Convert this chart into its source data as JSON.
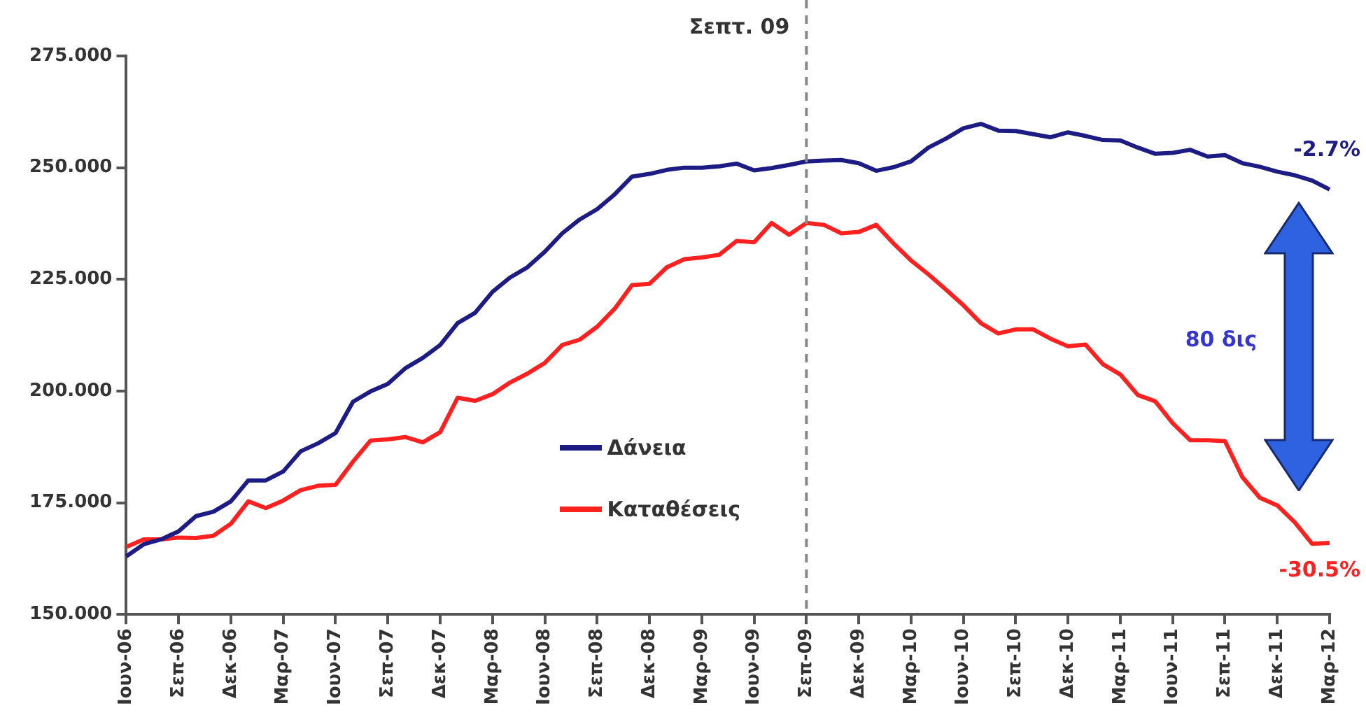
{
  "chart_data": {
    "type": "line",
    "categories": [
      "Ιουν-06",
      null,
      null,
      "Σεπ-06",
      null,
      null,
      "Δεκ-06",
      null,
      null,
      "Μαρ-07",
      null,
      null,
      "Ιουν-07",
      null,
      null,
      "Σεπ-07",
      null,
      null,
      "Δεκ-07",
      null,
      null,
      "Μαρ-08",
      null,
      null,
      "Ιουν-08",
      null,
      null,
      "Σεπ-08",
      null,
      null,
      "Δεκ-08",
      null,
      null,
      "Μαρ-09",
      null,
      null,
      "Ιουν-09",
      null,
      null,
      "Σεπ-09",
      null,
      null,
      "Δεκ-09",
      null,
      null,
      "Μαρ-10",
      null,
      null,
      "Ιουν-10",
      null,
      null,
      "Σεπ-10",
      null,
      null,
      "Δεκ-10",
      null,
      null,
      "Μαρ-11",
      null,
      null,
      "Ιουν-11",
      null,
      null,
      "Σεπ-11",
      null,
      null,
      "Δεκ-11",
      null,
      null,
      "Μαρ-12"
    ],
    "series": [
      {
        "name": "Δάνεια",
        "color": "#1c1c84",
        "values": [
          163.0,
          165.7,
          166.8,
          168.6,
          172.0,
          173.0,
          175.3,
          180.0,
          180.0,
          182.0,
          186.5,
          188.3,
          190.6,
          197.6,
          199.9,
          201.6,
          205.1,
          207.4,
          210.3,
          215.2,
          217.5,
          222.2,
          225.4,
          227.7,
          231.2,
          235.3,
          238.4,
          240.7,
          244.0,
          248.0,
          248.6,
          249.5,
          250.0,
          250.0,
          250.3,
          250.9,
          249.4,
          249.9,
          250.6,
          251.4,
          251.6,
          251.7,
          251.0,
          249.3,
          250.1,
          251.4,
          254.5,
          256.5,
          258.8,
          259.8,
          258.3,
          258.2,
          257.5,
          256.8,
          257.9,
          257.1,
          256.2,
          256.1,
          254.5,
          253.1,
          253.3,
          254.0,
          252.5,
          252.8,
          251.0,
          250.2,
          249.1,
          248.3,
          247.1,
          245.1
        ]
      },
      {
        "name": "Καταθέσεις",
        "color": "#ff2020",
        "values": [
          165.1,
          166.8,
          166.8,
          167.2,
          167.1,
          167.6,
          170.3,
          175.3,
          173.8,
          175.5,
          177.8,
          178.8,
          179.0,
          184.2,
          188.9,
          189.2,
          189.7,
          188.5,
          190.8,
          198.5,
          197.8,
          199.3,
          201.9,
          203.9,
          206.3,
          210.3,
          211.5,
          214.4,
          218.4,
          223.7,
          224.0,
          227.7,
          229.5,
          229.9,
          230.5,
          233.6,
          233.3,
          237.6,
          235.0,
          237.6,
          237.2,
          235.3,
          235.6,
          237.2,
          233.0,
          229.2,
          226.1,
          222.7,
          219.2,
          215.2,
          212.9,
          213.8,
          213.8,
          211.7,
          210.0,
          210.4,
          206.0,
          203.7,
          199.1,
          197.7,
          192.8,
          189.0,
          189.0,
          188.8,
          180.7,
          176.1,
          174.4,
          170.6,
          165.8,
          166.0
        ]
      }
    ],
    "ylim": [
      150,
      275
    ],
    "yticks": [
      {
        "value": 150,
        "label": "150.000"
      },
      {
        "value": 175,
        "label": "175.000"
      },
      {
        "value": 200,
        "label": "200.000"
      },
      {
        "value": 225,
        "label": "225.000"
      },
      {
        "value": 250,
        "label": "250.000"
      },
      {
        "value": 275,
        "label": "275.000"
      }
    ],
    "ref_lines": [
      {
        "axis": "x",
        "value": "Σεπ-09",
        "label": "Σεπτ. 09",
        "color": "#888888",
        "line_style": "dashed"
      }
    ],
    "annotations": [
      {
        "text": "-2.7%",
        "x": "Μαρ-12",
        "y": 245.1
      },
      {
        "text": "-30.5%",
        "x": "Μαρ-12",
        "y": 166.0
      },
      "80 δις"
    ],
    "legend": "center",
    "grid": false,
    "marker": "none",
    "line_style": "solid"
  }
}
